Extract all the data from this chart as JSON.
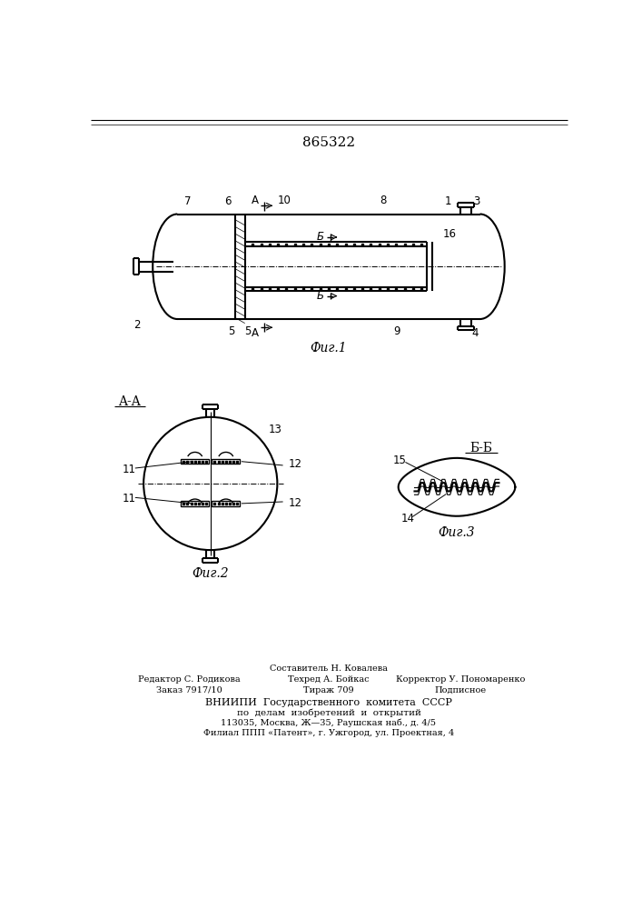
{
  "patent_number": "865322",
  "fig1_label": "Фиг.1",
  "fig2_label": "Фиг.2",
  "fig3_label": "Фиг.3",
  "section_aa": "A-A",
  "section_bb": "Б-Б",
  "bg_color": "#ffffff",
  "line_color": "#000000"
}
